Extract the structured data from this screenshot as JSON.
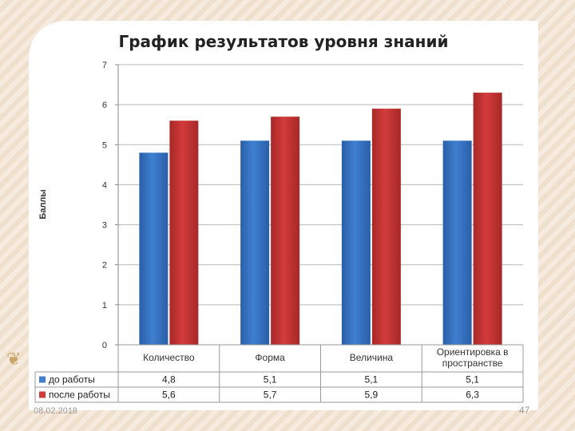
{
  "footer": {
    "date": "08.02.2018",
    "page": "47"
  },
  "colors": {
    "series1": "#3f7fd0",
    "series1_dark": "#2a5fa8",
    "series2": "#d23b3b",
    "series2_dark": "#a82828"
  },
  "chart_data": {
    "type": "bar",
    "title": "График результатов уровня знаний",
    "ylabel": "Баллы",
    "xlabel": "",
    "ylim": [
      0,
      7
    ],
    "yticks": [
      "0",
      "1",
      "2",
      "3",
      "4",
      "5",
      "6",
      "7"
    ],
    "grid": true,
    "legend": "table-below",
    "categories": [
      [
        "Количество"
      ],
      [
        "Форма"
      ],
      [
        "Величина"
      ],
      [
        "Ориентировка в",
        "пространстве"
      ]
    ],
    "series": [
      {
        "name": "до работы",
        "values": [
          4.8,
          5.1,
          5.1,
          5.1
        ],
        "labels": [
          "4,8",
          "5,1",
          "5,1",
          "5,1"
        ]
      },
      {
        "name": "после работы",
        "values": [
          5.6,
          5.7,
          5.9,
          6.3
        ],
        "labels": [
          "5,6",
          "5,7",
          "5,9",
          "6,3"
        ]
      }
    ]
  }
}
